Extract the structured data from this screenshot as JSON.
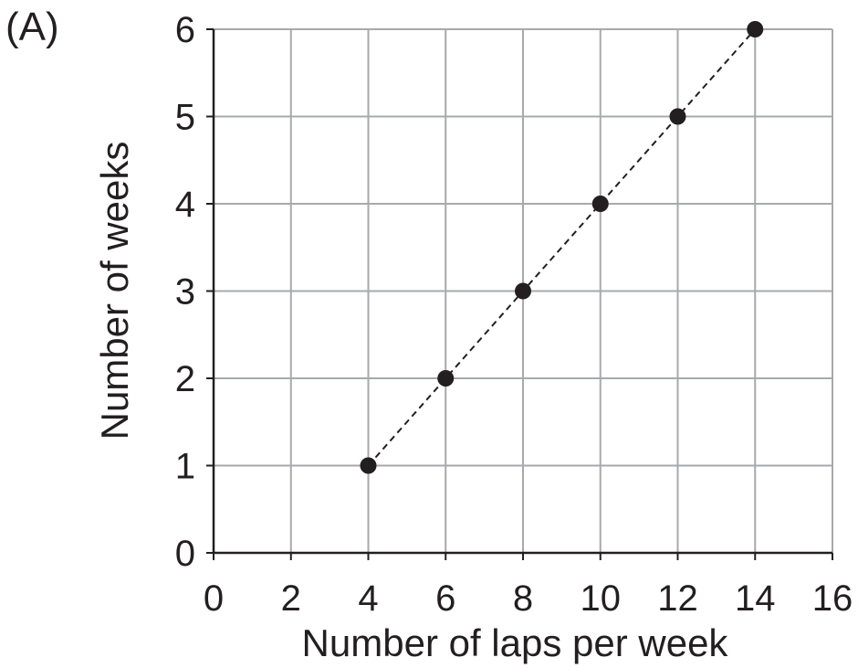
{
  "panel_label": "(A)",
  "chart_data": {
    "type": "scatter",
    "title": "",
    "xlabel": "Number of laps per week",
    "ylabel": "Number of weeks",
    "xlim": [
      0,
      16
    ],
    "ylim": [
      0,
      6
    ],
    "xticks": [
      0,
      2,
      4,
      6,
      8,
      10,
      12,
      14,
      16
    ],
    "yticks": [
      0,
      1,
      2,
      3,
      4,
      5,
      6
    ],
    "grid": true,
    "connector": "dashed",
    "points": [
      {
        "x": 4,
        "y": 1
      },
      {
        "x": 6,
        "y": 2
      },
      {
        "x": 8,
        "y": 3
      },
      {
        "x": 10,
        "y": 4
      },
      {
        "x": 12,
        "y": 5
      },
      {
        "x": 14,
        "y": 6
      }
    ],
    "colors": {
      "grid": "#a7a9ac",
      "axis": "#231f20",
      "marker": "#231f20"
    }
  }
}
